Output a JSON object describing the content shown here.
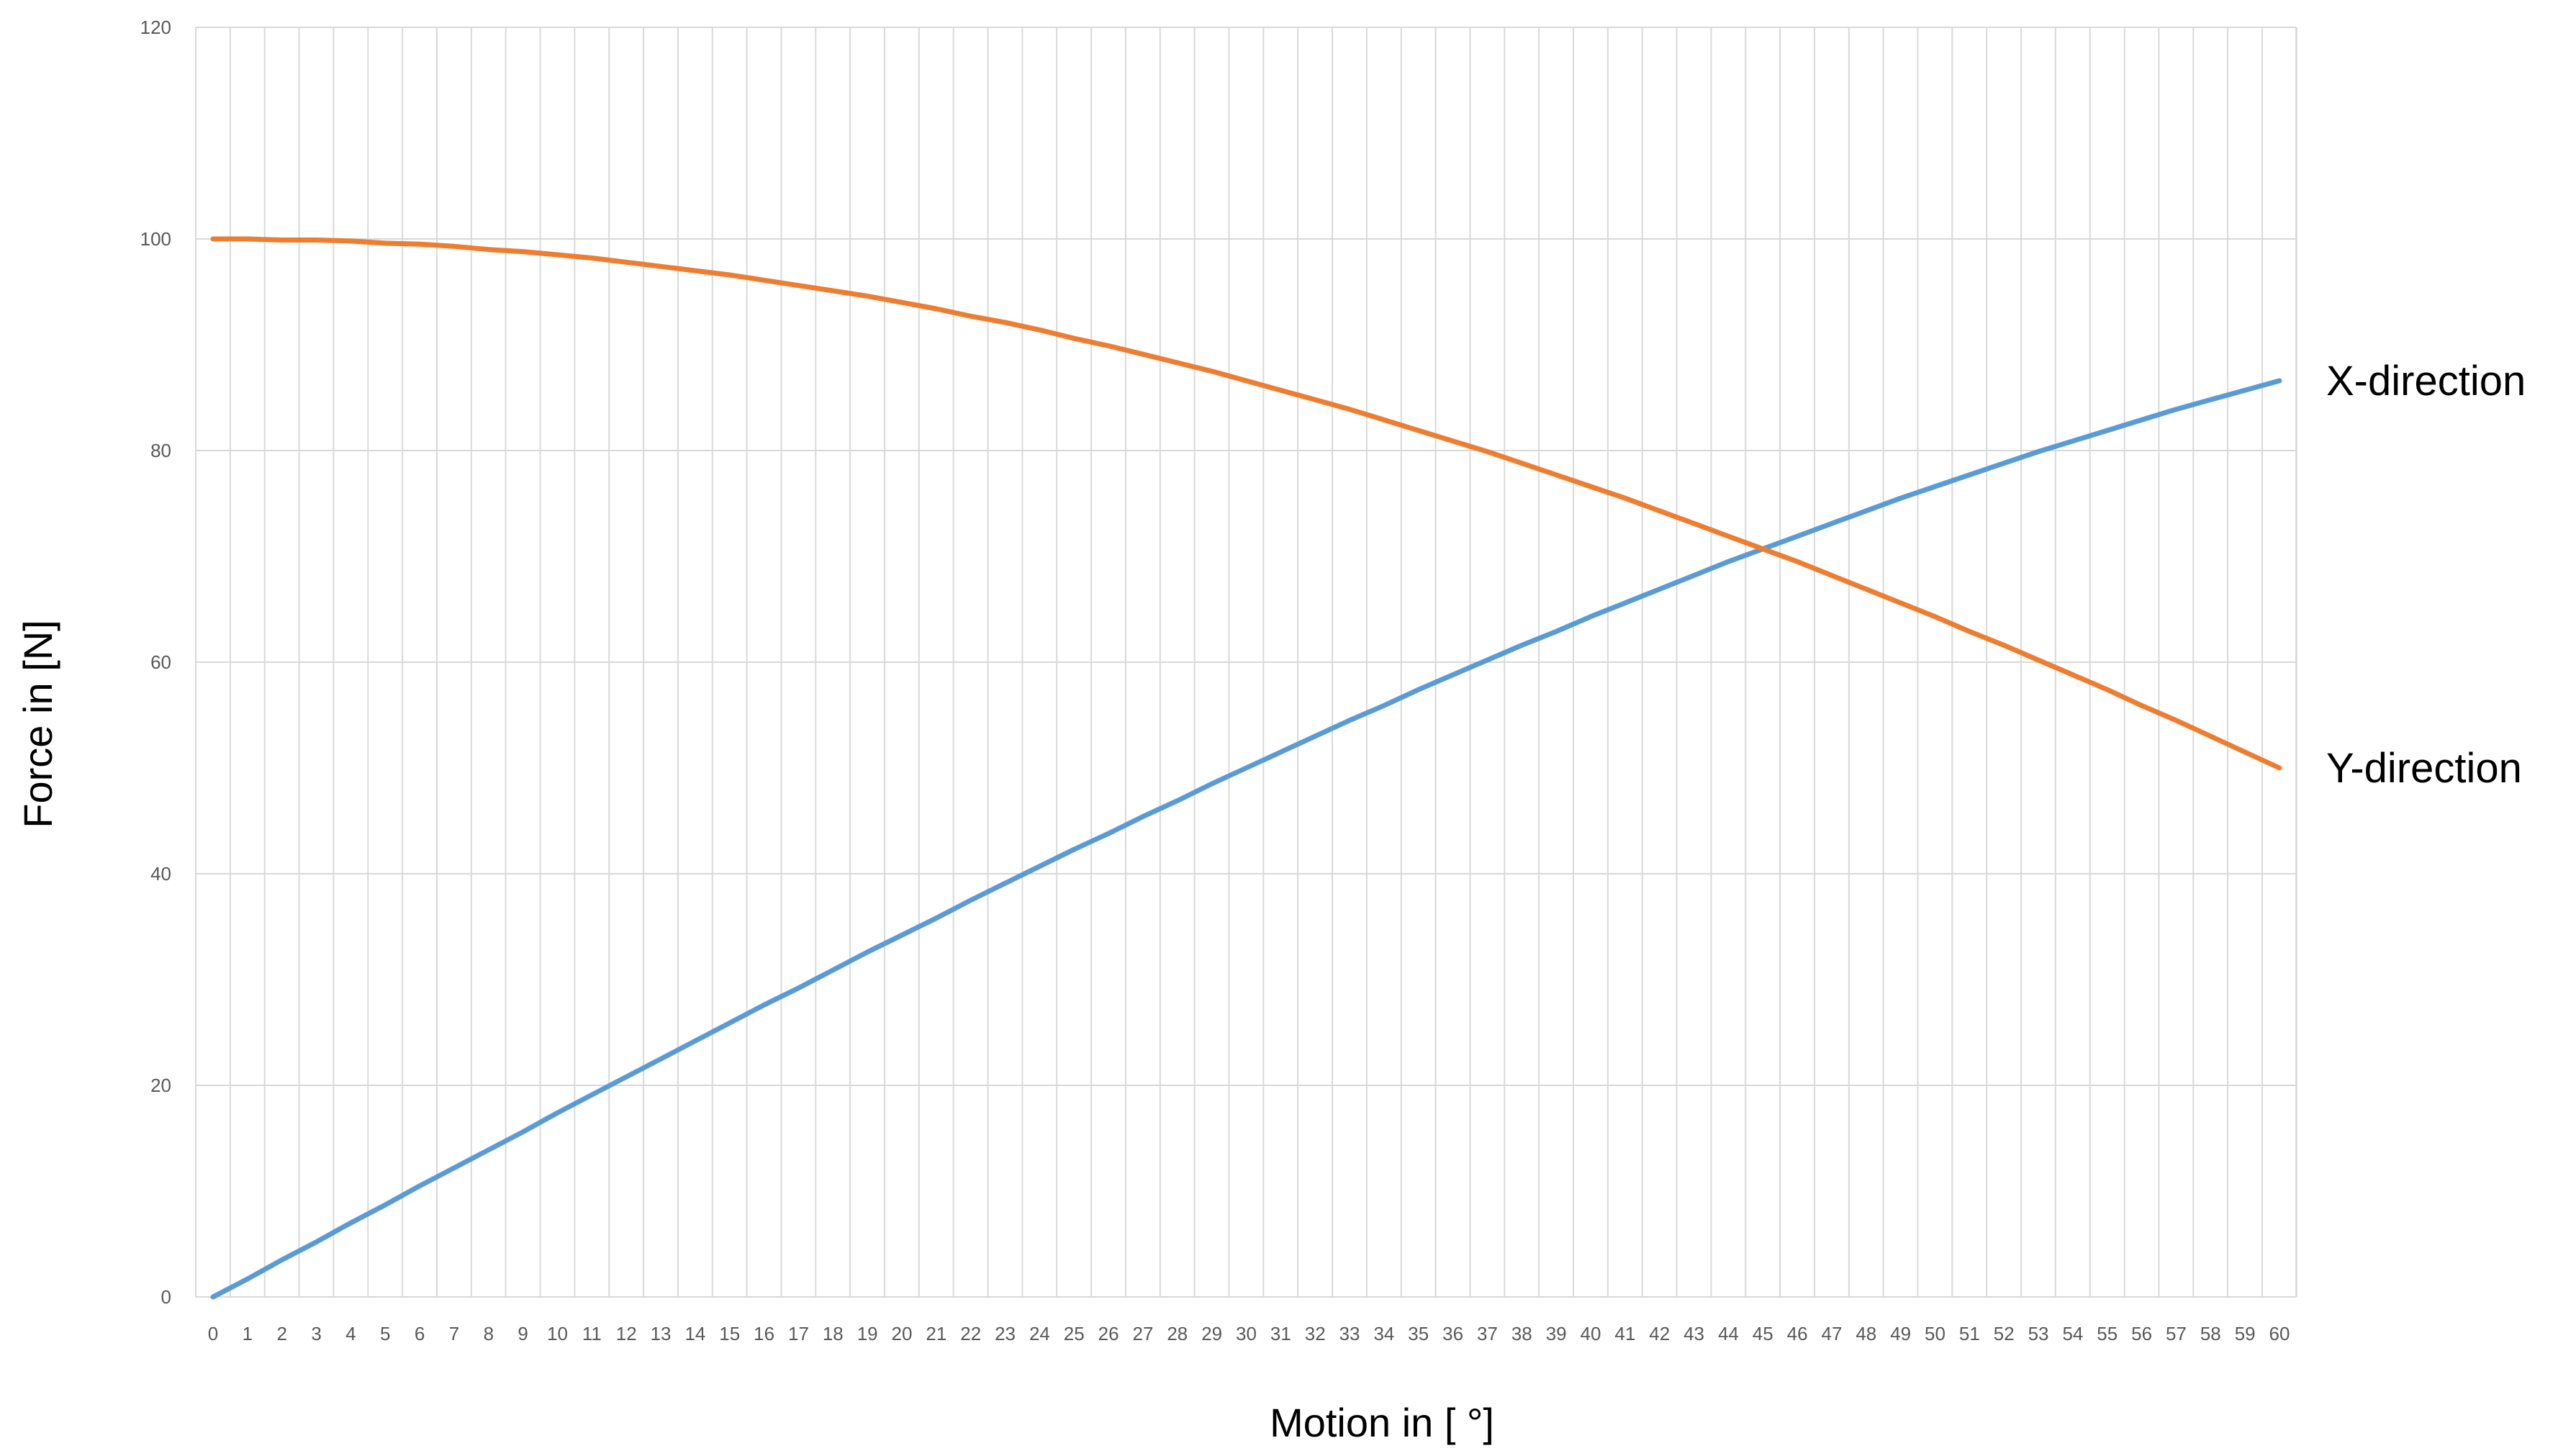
{
  "chart_data": {
    "type": "line",
    "title": "",
    "xlabel": "Motion in [ °]",
    "ylabel": "Force in [N]",
    "x": [
      0,
      1,
      2,
      3,
      4,
      5,
      6,
      7,
      8,
      9,
      10,
      11,
      12,
      13,
      14,
      15,
      16,
      17,
      18,
      19,
      20,
      21,
      22,
      23,
      24,
      25,
      26,
      27,
      28,
      29,
      30,
      31,
      32,
      33,
      34,
      35,
      36,
      37,
      38,
      39,
      40,
      41,
      42,
      43,
      44,
      45,
      46,
      47,
      48,
      49,
      50,
      51,
      52,
      53,
      54,
      55,
      56,
      57,
      58,
      59,
      60
    ],
    "xlim": [
      0,
      60
    ],
    "ylim": [
      0,
      120
    ],
    "yticks": [
      0,
      20,
      40,
      60,
      80,
      100,
      120
    ],
    "grid": true,
    "legend": "labels at line ends (right)",
    "series": [
      {
        "name": "X-direction",
        "color": "#5B9BD5",
        "values": [
          0,
          1.7,
          3.5,
          5.2,
          7.0,
          8.7,
          10.5,
          12.2,
          13.9,
          15.6,
          17.4,
          19.1,
          20.8,
          22.5,
          24.2,
          25.9,
          27.6,
          29.2,
          30.9,
          32.6,
          34.2,
          35.8,
          37.5,
          39.1,
          40.7,
          42.3,
          43.8,
          45.4,
          46.9,
          48.5,
          50.0,
          51.5,
          53.0,
          54.5,
          55.9,
          57.4,
          58.8,
          60.2,
          61.6,
          62.9,
          64.3,
          65.6,
          66.9,
          68.2,
          69.5,
          70.7,
          71.9,
          73.1,
          74.3,
          75.5,
          76.6,
          77.7,
          78.8,
          79.9,
          80.9,
          81.9,
          82.9,
          83.9,
          84.8,
          85.7,
          86.6
        ]
      },
      {
        "name": "Y-direction",
        "color": "#ED7D31",
        "values": [
          100,
          100,
          99.9,
          99.9,
          99.8,
          99.6,
          99.5,
          99.3,
          99.0,
          98.8,
          98.5,
          98.2,
          97.8,
          97.4,
          97.0,
          96.6,
          96.1,
          95.6,
          95.1,
          94.6,
          94.0,
          93.4,
          92.7,
          92.1,
          91.4,
          90.6,
          89.9,
          89.1,
          88.3,
          87.5,
          86.6,
          85.7,
          84.8,
          83.9,
          82.9,
          81.9,
          80.9,
          79.9,
          78.8,
          77.7,
          76.6,
          75.5,
          74.3,
          73.1,
          71.9,
          70.7,
          69.5,
          68.2,
          66.9,
          65.6,
          64.3,
          62.9,
          61.6,
          60.2,
          58.8,
          57.4,
          55.9,
          54.5,
          53.0,
          51.5,
          50.0
        ]
      }
    ],
    "series_labels": [
      "X-direction",
      "Y-direction"
    ]
  }
}
